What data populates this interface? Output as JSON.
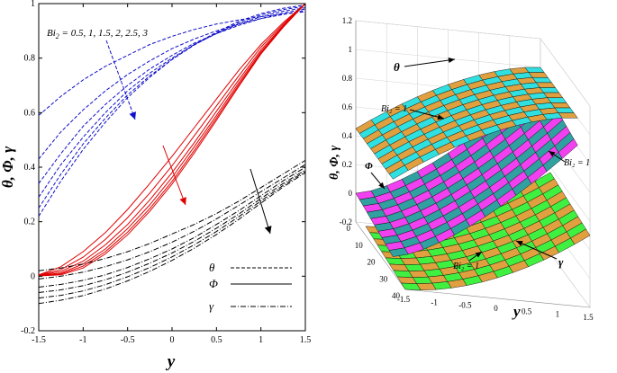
{
  "chart_data": [
    {
      "type": "line",
      "title": "",
      "xlabel": "y",
      "ylabel": "θ, Φ, γ",
      "xlim": [
        -1.5,
        1.5
      ],
      "ylim": [
        -0.2,
        1.0
      ],
      "xticks": [
        "-1.5",
        "-1",
        "-0.5",
        "0",
        "0.5",
        "1",
        "1.5"
      ],
      "xtick_values": [
        -1.5,
        -1,
        -0.5,
        0,
        0.5,
        1,
        1.5
      ],
      "yticks": [
        "-0.2",
        "0",
        "0.2",
        "0.4",
        "0.6",
        "0.8",
        "1"
      ],
      "ytick_values": [
        -0.2,
        0,
        0.2,
        0.4,
        0.6,
        0.8,
        1
      ],
      "grid": false,
      "legend_position": "bottom-right",
      "legend": [
        {
          "label": "θ",
          "style": "dashed"
        },
        {
          "label": "Φ",
          "style": "solid"
        },
        {
          "label": "γ",
          "style": "dashdot"
        }
      ],
      "annotation": "Bi₂ = 0.5, 1, 1.5, 2, 2.5, 3",
      "annotation_parts": {
        "prefix": "Bi",
        "subscript": "2",
        "suffix": " = 0.5, 1, 1.5, 2, 2.5, 3"
      },
      "colors": {
        "theta": "#1010c8",
        "phi": "#e00000",
        "gamma": "#000000",
        "arrow_theta": "#1010c8",
        "arrow_phi": "#e00000",
        "arrow_gamma": "#000000"
      },
      "x": [
        -1.5,
        -1.25,
        -1.0,
        -0.75,
        -0.5,
        -0.25,
        0.0,
        0.25,
        0.5,
        0.75,
        1.0,
        1.25,
        1.5
      ],
      "series": [
        {
          "name": "theta Bi2=0.5",
          "group": "theta",
          "values": [
            0.59,
            0.66,
            0.72,
            0.77,
            0.81,
            0.85,
            0.88,
            0.905,
            0.925,
            0.94,
            0.952,
            0.962,
            0.97
          ]
        },
        {
          "name": "theta Bi2=1",
          "group": "theta",
          "values": [
            0.43,
            0.53,
            0.61,
            0.68,
            0.74,
            0.79,
            0.835,
            0.87,
            0.9,
            0.925,
            0.945,
            0.96,
            0.975
          ]
        },
        {
          "name": "theta Bi2=1.5",
          "group": "theta",
          "values": [
            0.34,
            0.45,
            0.55,
            0.63,
            0.7,
            0.76,
            0.81,
            0.855,
            0.89,
            0.92,
            0.945,
            0.965,
            0.98
          ]
        },
        {
          "name": "theta Bi2=2",
          "group": "theta",
          "values": [
            0.29,
            0.41,
            0.51,
            0.6,
            0.68,
            0.745,
            0.8,
            0.85,
            0.89,
            0.925,
            0.952,
            0.972,
            0.985
          ]
        },
        {
          "name": "theta Bi2=2.5",
          "group": "theta",
          "values": [
            0.25,
            0.375,
            0.485,
            0.58,
            0.665,
            0.735,
            0.795,
            0.848,
            0.892,
            0.93,
            0.958,
            0.978,
            0.99
          ]
        },
        {
          "name": "theta Bi2=3",
          "group": "theta",
          "values": [
            0.22,
            0.35,
            0.465,
            0.565,
            0.655,
            0.73,
            0.795,
            0.85,
            0.895,
            0.935,
            0.963,
            0.983,
            0.995
          ]
        },
        {
          "name": "phi Bi2=0.5",
          "group": "phi",
          "values": [
            0.005,
            0.035,
            0.09,
            0.16,
            0.245,
            0.34,
            0.44,
            0.545,
            0.65,
            0.755,
            0.85,
            0.93,
            1.0
          ]
        },
        {
          "name": "phi Bi2=1",
          "group": "phi",
          "values": [
            0.005,
            0.025,
            0.07,
            0.135,
            0.215,
            0.305,
            0.405,
            0.515,
            0.625,
            0.735,
            0.84,
            0.925,
            1.0
          ]
        },
        {
          "name": "phi Bi2=1.5",
          "group": "phi",
          "values": [
            0.004,
            0.018,
            0.055,
            0.115,
            0.19,
            0.28,
            0.38,
            0.49,
            0.605,
            0.72,
            0.83,
            0.92,
            1.0
          ]
        },
        {
          "name": "phi Bi2=2",
          "group": "phi",
          "values": [
            0.003,
            0.012,
            0.045,
            0.1,
            0.175,
            0.262,
            0.362,
            0.475,
            0.59,
            0.71,
            0.823,
            0.917,
            1.0
          ]
        },
        {
          "name": "phi Bi2=2.5",
          "group": "phi",
          "values": [
            0.002,
            0.008,
            0.037,
            0.09,
            0.162,
            0.248,
            0.348,
            0.462,
            0.58,
            0.702,
            0.818,
            0.915,
            1.0
          ]
        },
        {
          "name": "phi Bi2=3",
          "group": "phi",
          "values": [
            0.001,
            0.005,
            0.03,
            0.082,
            0.152,
            0.238,
            0.338,
            0.452,
            0.572,
            0.696,
            0.815,
            0.913,
            1.0
          ]
        },
        {
          "name": "gamma Bi2=0.5",
          "group": "gamma",
          "values": [
            0.02,
            0.03,
            0.045,
            0.065,
            0.09,
            0.12,
            0.155,
            0.19,
            0.23,
            0.275,
            0.325,
            0.375,
            0.425
          ]
        },
        {
          "name": "gamma Bi2=1",
          "group": "gamma",
          "values": [
            -0.01,
            0.0,
            0.015,
            0.035,
            0.06,
            0.09,
            0.125,
            0.165,
            0.21,
            0.26,
            0.31,
            0.36,
            0.41
          ]
        },
        {
          "name": "gamma Bi2=1.5",
          "group": "gamma",
          "values": [
            -0.04,
            -0.03,
            -0.015,
            0.005,
            0.032,
            0.064,
            0.1,
            0.142,
            0.19,
            0.24,
            0.295,
            0.35,
            0.4
          ]
        },
        {
          "name": "gamma Bi2=2",
          "group": "gamma",
          "values": [
            -0.06,
            -0.05,
            -0.035,
            -0.013,
            0.015,
            0.048,
            0.085,
            0.128,
            0.176,
            0.228,
            0.285,
            0.34,
            0.39
          ]
        },
        {
          "name": "gamma Bi2=2.5",
          "group": "gamma",
          "values": [
            -0.08,
            -0.07,
            -0.054,
            -0.031,
            -0.002,
            0.032,
            0.071,
            0.115,
            0.164,
            0.218,
            0.276,
            0.333,
            0.385
          ]
        },
        {
          "name": "gamma Bi2=3",
          "group": "gamma",
          "values": [
            -0.1,
            -0.088,
            -0.071,
            -0.047,
            -0.017,
            0.018,
            0.058,
            0.103,
            0.153,
            0.208,
            0.268,
            0.327,
            0.38
          ]
        }
      ]
    },
    {
      "type": "surface3d",
      "title": "",
      "xlabel": "y",
      "ylabel": "θ, Φ, γ",
      "zlim": [
        -0.2,
        1.2
      ],
      "zticks": [
        "-0.2",
        "0",
        "0.2",
        "0.4",
        "0.6",
        "0.8",
        "1",
        "1.2"
      ],
      "ztick_values": [
        -0.2,
        0,
        0.2,
        0.4,
        0.6,
        0.8,
        1.0,
        1.2
      ],
      "xticks": [
        "-1.5",
        "-1",
        "-0.5",
        "0",
        "0.5",
        "1",
        "1.5"
      ],
      "xtick_values": [
        -1.5,
        -1,
        -0.5,
        0,
        0.5,
        1,
        1.5
      ],
      "depth_ticks": [
        "0",
        "10",
        "20",
        "30",
        "40"
      ],
      "depth_tick_values": [
        0,
        10,
        20,
        30,
        40
      ],
      "surfaces": [
        {
          "name": "theta",
          "label": "θ",
          "annotation": "Bi₂ = 1",
          "colors": [
            "#e0a040",
            "#30e0e0"
          ]
        },
        {
          "name": "phi",
          "label": "Φ",
          "annotation": "Bi₂ = 1",
          "colors": [
            "#f040f0",
            "#30a0a0"
          ]
        },
        {
          "name": "gamma",
          "label": "γ",
          "annotation": "Bi₂ = 1",
          "colors": [
            "#e0a040",
            "#40f040"
          ]
        }
      ],
      "grid": true
    }
  ]
}
